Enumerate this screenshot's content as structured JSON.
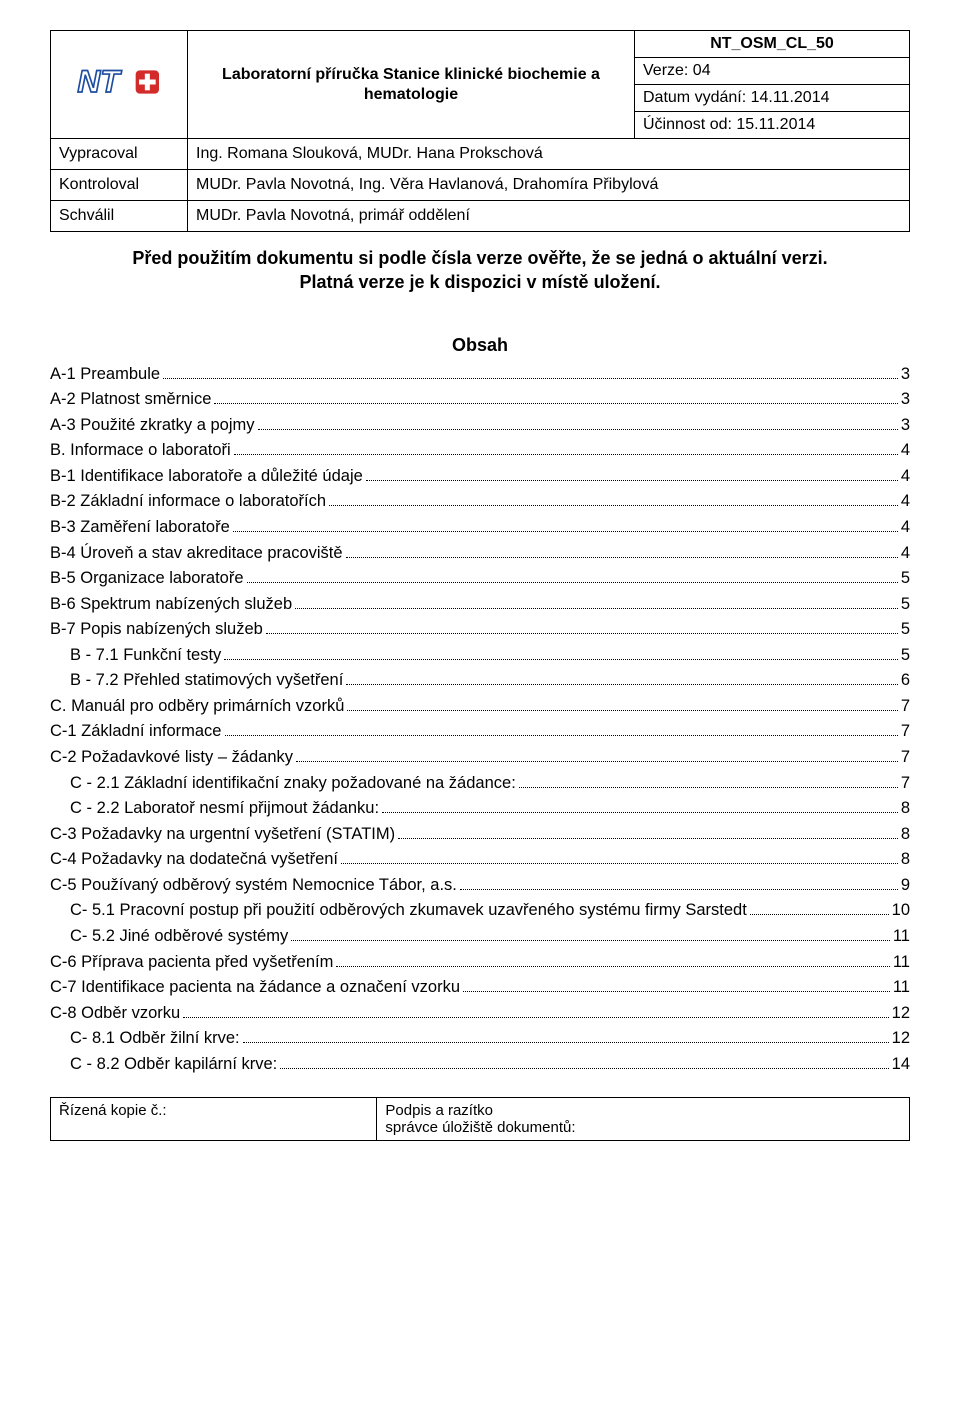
{
  "header": {
    "title": "Laboratorní příručka Stanice klinické biochemie a hematologie",
    "doc_id": "NT_OSM_CL_50",
    "version_label": "Verze: 04",
    "issue_date_label": "Datum vydání: 14.11.2014",
    "effective_label": "Účinnost od: 15.11.2014",
    "rows": [
      {
        "label": "Vypracoval",
        "value": "Ing. Romana Slouková, MUDr. Hana Prokschová"
      },
      {
        "label": "Kontroloval",
        "value": "MUDr. Pavla Novotná, Ing. Věra Havlanová, Drahomíra Přibylová"
      },
      {
        "label": "Schválil",
        "value": "MUDr. Pavla Novotná, primář oddělení"
      }
    ],
    "logo": {
      "text": "NT",
      "plus": "+",
      "outline_color": "#1e4ca0",
      "text_color": "#1e4ca0",
      "plus_bg": "#d32a2a",
      "plus_fg": "#ffffff"
    }
  },
  "notice": {
    "line1": "Před použitím dokumentu si podle čísla verze ověřte, že se jedná o aktuální verzi.",
    "line2": "Platná verze je k dispozici v místě uložení."
  },
  "obsah_title": "Obsah",
  "toc": [
    {
      "label": "A-1 Preambule",
      "page": "3",
      "indent": 0
    },
    {
      "label": "A-2 Platnost směrnice",
      "page": "3",
      "indent": 0
    },
    {
      "label": "A-3 Použité zkratky a pojmy",
      "page": "3",
      "indent": 0
    },
    {
      "label": "B. Informace o laboratoři",
      "page": "4",
      "indent": 0
    },
    {
      "label": "B-1 Identifikace laboratoře a důležité údaje",
      "page": "4",
      "indent": 0
    },
    {
      "label": "B-2 Základní informace o laboratořích",
      "page": "4",
      "indent": 0
    },
    {
      "label": "B-3 Zaměření laboratoře",
      "page": "4",
      "indent": 0
    },
    {
      "label": "B-4 Úroveň a stav akreditace pracoviště",
      "page": "4",
      "indent": 0
    },
    {
      "label": "B-5 Organizace laboratoře",
      "page": "5",
      "indent": 0
    },
    {
      "label": "B-6 Spektrum nabízených služeb",
      "page": "5",
      "indent": 0
    },
    {
      "label": "B-7 Popis nabízených služeb",
      "page": "5",
      "indent": 0
    },
    {
      "label": "B - 7.1  Funkční testy",
      "page": "5",
      "indent": 1
    },
    {
      "label": "B - 7.2  Přehled statimových vyšetření",
      "page": "6",
      "indent": 1
    },
    {
      "label": "C.  Manuál pro odběry primárních vzorků",
      "page": "7",
      "indent": 0
    },
    {
      "label": "C-1 Základní informace",
      "page": "7",
      "indent": 0
    },
    {
      "label": "C-2 Požadavkové listy – žádanky",
      "page": "7",
      "indent": 0
    },
    {
      "label": "C - 2.1  Základní identifikační znaky požadované na žádance:",
      "page": "7",
      "indent": 1
    },
    {
      "label": "C - 2.2  Laboratoř nesmí přijmout žádanku:",
      "page": "8",
      "indent": 1
    },
    {
      "label": "C-3 Požadavky na urgentní vyšetření (STATIM)",
      "page": "8",
      "indent": 0
    },
    {
      "label": "C-4 Požadavky na dodatečná vyšetření",
      "page": "8",
      "indent": 0
    },
    {
      "label": "C-5 Používaný odběrový systém Nemocnice Tábor, a.s.",
      "page": "9",
      "indent": 0
    },
    {
      "label": "C- 5.1  Pracovní postup při použití odběrových zkumavek uzavřeného systému firmy Sarstedt",
      "page": "10",
      "indent": 1
    },
    {
      "label": "C- 5.2  Jiné odběrové systémy",
      "page": "11",
      "indent": 1
    },
    {
      "label": "C-6 Příprava pacienta před vyšetřením",
      "page": "11",
      "indent": 0
    },
    {
      "label": "C-7 Identifikace pacienta na žádance a označení vzorku",
      "page": "11",
      "indent": 0
    },
    {
      "label": "C-8 Odběr vzorku",
      "page": "12",
      "indent": 0
    },
    {
      "label": "C- 8.1  Odběr žilní krve:",
      "page": "12",
      "indent": 1
    },
    {
      "label": "C - 8.2  Odběr kapilární krve:",
      "page": "14",
      "indent": 1
    }
  ],
  "footer": {
    "left": "Řízená kopie č.:",
    "right_line1": "Podpis a razítko",
    "right_line2": "správce úložiště dokumentů:"
  }
}
